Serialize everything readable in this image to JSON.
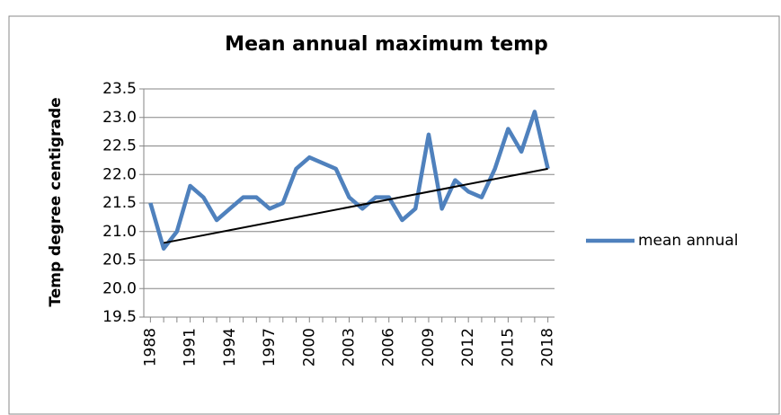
{
  "chart_data": {
    "type": "line",
    "title": "Mean annual maximum temp",
    "y_label": "Temp degree centigrade",
    "x": [
      1988,
      1989,
      1990,
      1991,
      1992,
      1993,
      1994,
      1995,
      1996,
      1997,
      1998,
      1999,
      2000,
      2001,
      2002,
      2003,
      2004,
      2005,
      2006,
      2007,
      2008,
      2009,
      2010,
      2011,
      2012,
      2013,
      2014,
      2015,
      2016,
      2017,
      2018
    ],
    "series": [
      {
        "name": "mean annual",
        "color": "#4f81bd",
        "values": [
          21.5,
          20.7,
          21.0,
          21.8,
          21.6,
          21.2,
          21.4,
          21.6,
          21.6,
          21.4,
          21.5,
          22.1,
          22.3,
          22.2,
          22.1,
          21.6,
          21.4,
          21.6,
          21.6,
          21.2,
          21.4,
          22.7,
          21.4,
          21.9,
          21.7,
          21.6,
          22.1,
          22.8,
          22.4,
          23.1,
          22.1
        ]
      }
    ],
    "trendline": {
      "x": [
        1989,
        2018
      ],
      "values": [
        20.8,
        22.1
      ],
      "color": "#000000"
    },
    "xlim": [
      1987.5,
      2018.5
    ],
    "xticks": [
      1988,
      1991,
      1994,
      1997,
      2000,
      2003,
      2006,
      2009,
      2012,
      2015,
      2018
    ],
    "ylim": [
      19.5,
      23.5
    ],
    "yticks": [
      19.5,
      {
        "value": 20,
        "label": "20.0"
      },
      20.5,
      {
        "value": 21,
        "label": "21.0"
      },
      21.5,
      {
        "value": 22,
        "label": "22.0"
      },
      22.5,
      {
        "value": 23,
        "label": "23.0"
      },
      23.5
    ],
    "grid": true,
    "legend": "right"
  }
}
